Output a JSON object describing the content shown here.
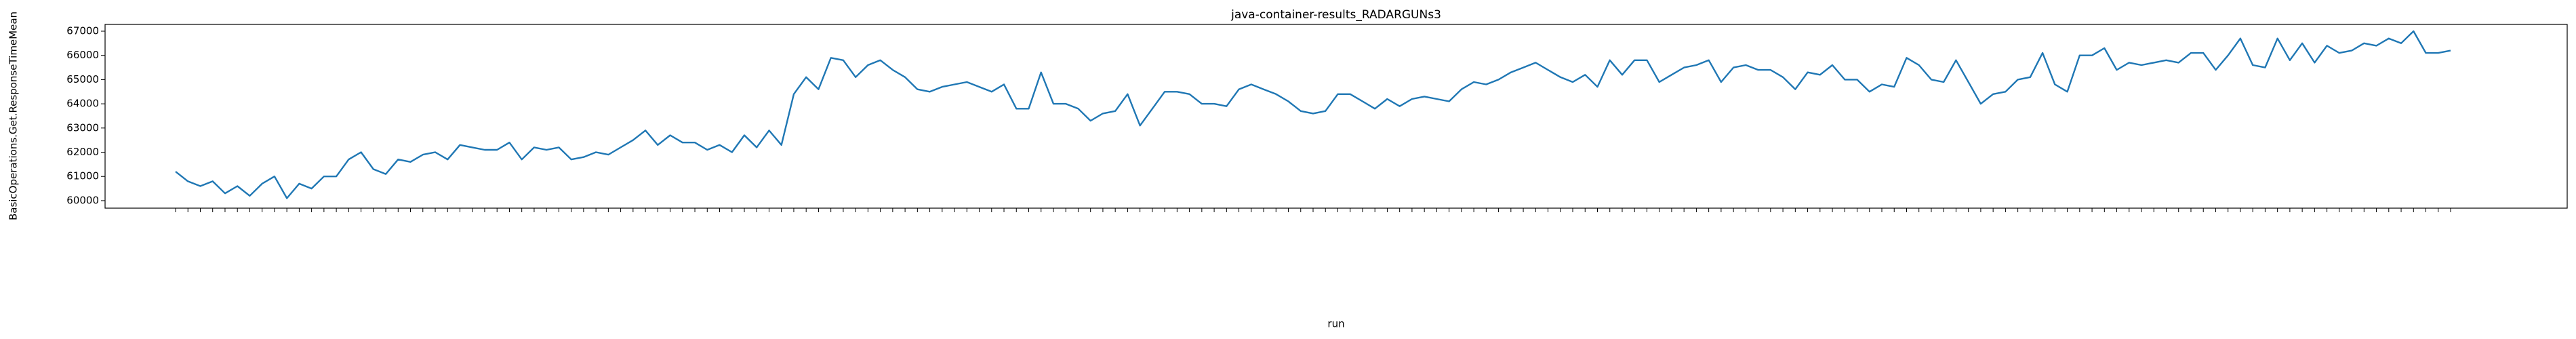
{
  "chart_data": {
    "type": "line",
    "title": "java-container-results_RADARGUNs3",
    "x_label": "run",
    "y_label": "BasicOperations.Get.ResponseTimeMean",
    "categories": [
      null,
      null,
      null,
      null,
      null,
      null,
      null,
      null,
      null,
      null,
      null,
      null,
      null,
      null,
      null,
      null,
      null,
      null,
      null,
      null,
      null,
      null,
      null,
      null,
      null,
      null,
      null,
      null,
      null,
      null,
      null,
      null,
      null,
      null,
      null,
      null,
      null,
      null,
      null,
      null,
      null,
      null,
      null,
      null,
      null,
      null,
      null,
      null,
      null,
      null,
      null,
      null,
      null,
      null,
      null,
      null,
      null,
      null,
      null,
      null,
      null,
      null,
      null,
      null,
      null,
      null,
      null,
      null,
      null,
      null,
      null,
      null,
      null,
      null,
      null,
      null,
      null,
      null,
      null,
      null,
      null,
      null,
      null,
      null,
      null,
      null,
      null,
      null,
      null,
      null,
      null,
      null,
      null,
      null,
      null,
      null,
      null,
      null,
      null,
      null,
      null,
      null,
      null,
      null,
      null,
      null,
      null,
      null,
      null,
      null,
      null,
      null,
      null,
      null,
      null,
      null,
      null,
      null,
      null,
      null,
      null,
      null,
      null,
      null,
      null,
      null,
      null,
      null,
      null,
      null,
      null,
      null,
      null,
      null,
      null,
      null,
      null,
      null,
      null,
      null,
      null,
      null,
      null,
      null,
      null,
      null,
      null,
      null,
      null,
      null,
      null,
      null,
      null,
      null,
      null,
      null,
      null,
      null,
      null,
      null,
      null,
      null,
      null,
      null,
      null,
      null,
      null,
      null,
      null,
      null,
      null,
      null,
      null,
      null,
      null,
      null,
      null,
      null,
      null,
      null,
      null,
      null,
      null,
      null,
      null
    ],
    "series": [
      {
        "name": "BasicOperations.Get.ResponseTimeMean",
        "color": "#1f77b4",
        "values": [
          61200,
          60800,
          60600,
          60800,
          60300,
          60600,
          60200,
          60700,
          61000,
          60100,
          60700,
          60500,
          61000,
          61000,
          61700,
          62000,
          61300,
          61100,
          61700,
          61600,
          61900,
          62000,
          61700,
          62300,
          62200,
          62100,
          62100,
          62400,
          61700,
          62200,
          62100,
          62200,
          61700,
          61800,
          62000,
          61900,
          62200,
          62500,
          62900,
          62300,
          62700,
          62400,
          62400,
          62100,
          62300,
          62000,
          62700,
          62200,
          62900,
          62300,
          64400,
          65100,
          64600,
          65900,
          65800,
          65100,
          65600,
          65800,
          65400,
          65100,
          64600,
          64500,
          64700,
          64800,
          64900,
          64700,
          64500,
          64800,
          63800,
          63800,
          65300,
          64000,
          64000,
          63800,
          63300,
          63600,
          63700,
          64400,
          63100,
          63800,
          64500,
          64500,
          64400,
          64000,
          64000,
          63900,
          64600,
          64800,
          64600,
          64400,
          64100,
          63700,
          63600,
          63700,
          64400,
          64400,
          64100,
          63800,
          64200,
          63900,
          64200,
          64300,
          64200,
          64100,
          64600,
          64900,
          64800,
          65000,
          65300,
          65500,
          65700,
          65400,
          65100,
          64900,
          65200,
          64700,
          65800,
          65200,
          65800,
          65800,
          64900,
          65200,
          65500,
          65600,
          65800,
          64900,
          65500,
          65600,
          65400,
          65400,
          65100,
          64600,
          65300,
          65200,
          65600,
          65000,
          65000,
          64500,
          64800,
          64700,
          65900,
          65600,
          65000,
          64900,
          65800,
          64900,
          64000,
          64400,
          64500,
          65000,
          65100,
          66100,
          64800,
          64500,
          66000,
          66000,
          66300,
          65400,
          65700,
          65600,
          65700,
          65800,
          65700,
          66100,
          66100,
          65400,
          66000,
          66700,
          65600,
          65500,
          66700,
          65800,
          66500,
          65700,
          66400,
          66100,
          66200,
          66500,
          66400,
          66700,
          66500,
          67000,
          66100,
          66100,
          66200
        ]
      }
    ],
    "ylim": [
      59690,
      67280
    ],
    "yticks": [
      60000,
      61000,
      62000,
      63000,
      64000,
      65000,
      66000,
      67000
    ],
    "grid": false
  }
}
